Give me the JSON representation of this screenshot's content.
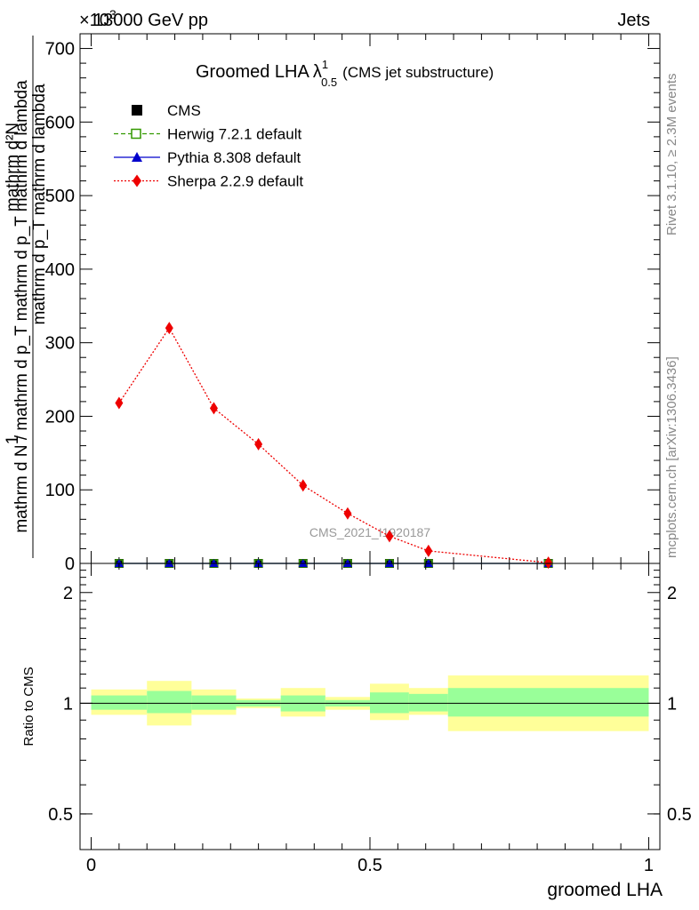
{
  "header": {
    "left": "13000 GeV pp",
    "right": "Jets",
    "exponent": "×10",
    "exponent_power": "3"
  },
  "title": {
    "main": "Groomed LHA",
    "lambda": "λ",
    "sup": "1",
    "sub": "0.5",
    "tail": "(CMS jet substructure)"
  },
  "ylabel_lines": [
    "mathrm d²N",
    "mathrm d p_T mathrm d lambda",
    "1",
    "mathrm d N / mathrm d p_T mathrm d p_T mathrm d lambda"
  ],
  "side_text": {
    "rivet": "Rivet 3.1.10, ≥ 2.3M events",
    "mcplots": "mcplots.cern.ch [arXiv:1306.3436]"
  },
  "watermark": "CMS_2021_I1920187",
  "xlabel": "groomed LHA",
  "ratio_ylabel": "Ratio to CMS",
  "colors": {
    "cms": "#000000",
    "herwig": "#339900",
    "pythia": "#0000cc",
    "sherpa": "#ee0000",
    "band_inner": "#99ff99",
    "band_outer": "#ffff99"
  },
  "legend": [
    {
      "key": "cms",
      "label": "CMS"
    },
    {
      "key": "herwig",
      "label": "Herwig 7.2.1 default"
    },
    {
      "key": "pythia",
      "label": "Pythia 8.308 default"
    },
    {
      "key": "sherpa",
      "label": "Sherpa 2.2.9 default"
    }
  ],
  "chart_data": [
    {
      "type": "line",
      "panel": "main",
      "xlim": [
        -0.02,
        1.02
      ],
      "ylim": [
        0,
        720
      ],
      "y_scale_note": "values ×10^3",
      "xticks": [
        "0",
        "0.5",
        "1"
      ],
      "yticks": [
        0,
        100,
        200,
        300,
        400,
        500,
        600,
        700
      ],
      "series": [
        {
          "name": "CMS",
          "key": "cms",
          "x": [
            0.05,
            0.14,
            0.22,
            0.3,
            0.38,
            0.46,
            0.535,
            0.605,
            0.82
          ],
          "values": [
            0,
            0,
            0,
            0,
            0,
            0,
            0,
            0,
            0
          ]
        },
        {
          "name": "Herwig 7.2.1 default",
          "key": "herwig",
          "x": [
            0.05,
            0.14,
            0.22,
            0.3,
            0.38,
            0.46,
            0.535,
            0.605,
            0.82
          ],
          "values": [
            0,
            0,
            0,
            0,
            0,
            0,
            0,
            0,
            0
          ]
        },
        {
          "name": "Pythia 8.308 default",
          "key": "pythia",
          "x": [
            0.05,
            0.14,
            0.22,
            0.3,
            0.38,
            0.46,
            0.535,
            0.605,
            0.82
          ],
          "values": [
            0,
            0,
            0,
            0,
            0,
            0,
            0,
            0,
            0
          ]
        },
        {
          "name": "Sherpa 2.2.9 default",
          "key": "sherpa",
          "x": [
            0.05,
            0.14,
            0.22,
            0.3,
            0.38,
            0.46,
            0.535,
            0.605,
            0.82
          ],
          "values": [
            218,
            320,
            211,
            162,
            106,
            68,
            37,
            17,
            1
          ]
        }
      ]
    },
    {
      "type": "area",
      "panel": "ratio",
      "xlim": [
        -0.02,
        1.02
      ],
      "ylim": [
        0.4,
        2.4
      ],
      "y_scale": "log",
      "yticks": [
        0.5,
        1,
        2
      ],
      "reference": 1,
      "bins": [
        {
          "x0": 0.0,
          "x1": 0.1,
          "inner": [
            0.96,
            1.05
          ],
          "outer": [
            0.93,
            1.09
          ]
        },
        {
          "x0": 0.1,
          "x1": 0.18,
          "inner": [
            0.94,
            1.08
          ],
          "outer": [
            0.87,
            1.15
          ]
        },
        {
          "x0": 0.18,
          "x1": 0.26,
          "inner": [
            0.96,
            1.05
          ],
          "outer": [
            0.93,
            1.09
          ]
        },
        {
          "x0": 0.26,
          "x1": 0.34,
          "inner": [
            0.98,
            1.02
          ],
          "outer": [
            0.97,
            1.03
          ]
        },
        {
          "x0": 0.34,
          "x1": 0.42,
          "inner": [
            0.95,
            1.05
          ],
          "outer": [
            0.92,
            1.1
          ]
        },
        {
          "x0": 0.42,
          "x1": 0.5,
          "inner": [
            0.98,
            1.02
          ],
          "outer": [
            0.96,
            1.04
          ]
        },
        {
          "x0": 0.5,
          "x1": 0.57,
          "inner": [
            0.94,
            1.07
          ],
          "outer": [
            0.9,
            1.13
          ]
        },
        {
          "x0": 0.57,
          "x1": 0.64,
          "inner": [
            0.95,
            1.06
          ],
          "outer": [
            0.93,
            1.1
          ]
        },
        {
          "x0": 0.64,
          "x1": 1.0,
          "inner": [
            0.92,
            1.1
          ],
          "outer": [
            0.84,
            1.19
          ]
        }
      ]
    }
  ]
}
